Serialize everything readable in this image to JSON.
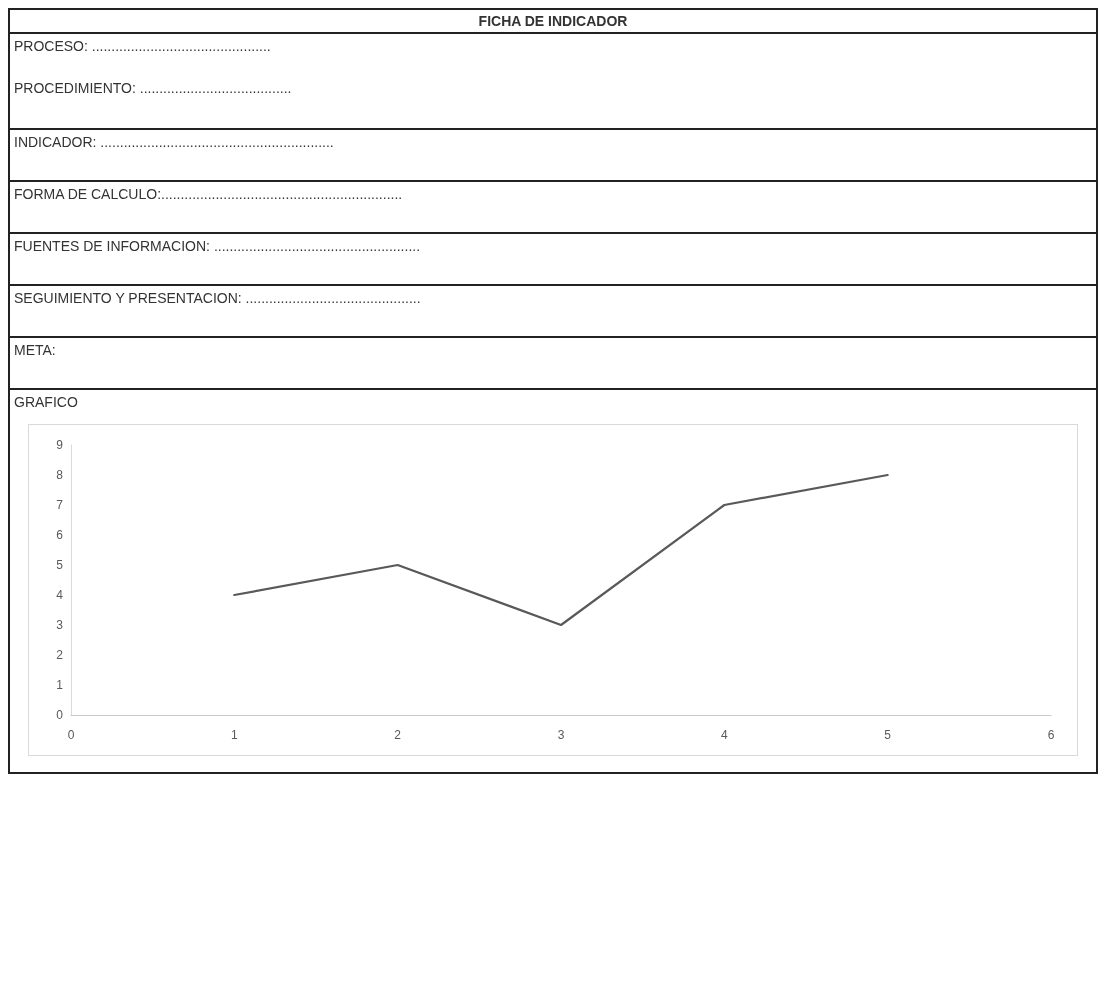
{
  "chart_data": {
    "type": "line",
    "title": "FICHA DE INDICADOR",
    "annotations": [
      "PROCESO: ..............................................",
      "PROCEDIMIENTO: .......................................",
      "INDICADOR: ............................................................",
      "FORMA DE CALCULO:..............................................................",
      "FUENTES DE INFORMACION: .....................................................",
      "SEGUIMIENTO Y PRESENTACION: .............................................",
      "META:",
      "GRAFICO"
    ],
    "x": [
      1,
      2,
      3,
      4,
      5
    ],
    "series": [
      {
        "color": "#595959",
        "values": [
          4,
          5,
          3,
          7,
          8
        ]
      }
    ],
    "xlim": [
      0,
      6
    ],
    "xticks": [
      0,
      1,
      2,
      3,
      4,
      5,
      6
    ],
    "ylim": [
      0,
      9
    ],
    "yticks": [
      0,
      1,
      2,
      3,
      4,
      5,
      6,
      7,
      8,
      9
    ],
    "grid": false,
    "marker": "none",
    "line_style": "solid"
  }
}
